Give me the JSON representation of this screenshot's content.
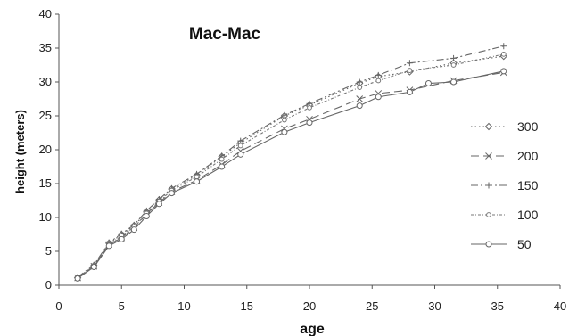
{
  "chart_data": {
    "type": "line",
    "title": "Mac-Mac",
    "xlabel": "age",
    "ylabel": "height (meters)",
    "xlim": [
      0,
      40
    ],
    "ylim": [
      0,
      40
    ],
    "xticks": [
      0,
      5,
      10,
      15,
      20,
      25,
      30,
      35,
      40
    ],
    "yticks": [
      0,
      5,
      10,
      15,
      20,
      25,
      30,
      35,
      40
    ],
    "grid": false,
    "legend_position": "right",
    "series": [
      {
        "name": "300",
        "marker": "diamond",
        "dash": "dotted",
        "color": "#666666",
        "x": [
          1.5,
          2.8,
          4,
          5,
          6,
          7,
          8,
          9,
          11,
          13,
          14.5,
          18,
          20,
          24,
          25.5,
          28,
          31.5,
          35.5
        ],
        "y": [
          1.1,
          2.9,
          6.2,
          7.5,
          8.8,
          10.8,
          12.6,
          14.2,
          16.2,
          19,
          21,
          25,
          26.6,
          29.8,
          30.8,
          31.5,
          32.8,
          33.8
        ]
      },
      {
        "name": "200",
        "marker": "x",
        "dash": "longdash",
        "color": "#666666",
        "x": [
          1.5,
          2.8,
          4,
          5,
          6,
          7,
          8,
          9,
          11,
          13,
          14.5,
          18,
          20,
          24,
          25.5,
          28,
          31.5,
          35.5
        ],
        "y": [
          1.1,
          2.8,
          6.0,
          7.0,
          8.5,
          10.5,
          12.2,
          13.8,
          15.5,
          17.8,
          19.8,
          23.1,
          24.5,
          27.5,
          28.3,
          28.8,
          30.2,
          31.4
        ]
      },
      {
        "name": "150",
        "marker": "plus",
        "dash": "dashdot",
        "color": "#666666",
        "x": [
          1.5,
          2.8,
          4,
          5,
          6,
          7,
          8,
          9,
          11,
          13,
          14.5,
          18,
          20,
          24,
          25.5,
          28,
          31.5,
          35.5
        ],
        "y": [
          1.2,
          3.0,
          6.3,
          7.6,
          8.9,
          11.0,
          12.7,
          14.3,
          16.4,
          19.1,
          21.3,
          25.1,
          26.8,
          30.0,
          31.0,
          32.8,
          33.5,
          35.3
        ]
      },
      {
        "name": "100",
        "marker": "circle-small",
        "dash": "dashdot-fine",
        "color": "#777777",
        "x": [
          1.5,
          2.8,
          4,
          5,
          6,
          7,
          8,
          9,
          11,
          13,
          14.5,
          18,
          20,
          24,
          25.5,
          28,
          31.5,
          35.5
        ],
        "y": [
          1.0,
          2.9,
          6.0,
          7.3,
          8.6,
          10.6,
          12.4,
          14.0,
          16.0,
          18.6,
          20.6,
          24.4,
          26.2,
          29.2,
          30.2,
          31.7,
          32.5,
          34.1
        ]
      },
      {
        "name": "50",
        "marker": "circle",
        "dash": "solid",
        "color": "#666666",
        "x": [
          1.5,
          2.8,
          4,
          5,
          6,
          7,
          8,
          9,
          11,
          13,
          14.5,
          18,
          20,
          24,
          25.5,
          28,
          29.5,
          31.5,
          35.5
        ],
        "y": [
          1.0,
          2.7,
          5.8,
          6.8,
          8.2,
          10.2,
          12.0,
          13.6,
          15.3,
          17.5,
          19.3,
          22.6,
          24.0,
          26.5,
          27.8,
          28.5,
          29.8,
          30.0,
          31.6
        ]
      }
    ]
  }
}
